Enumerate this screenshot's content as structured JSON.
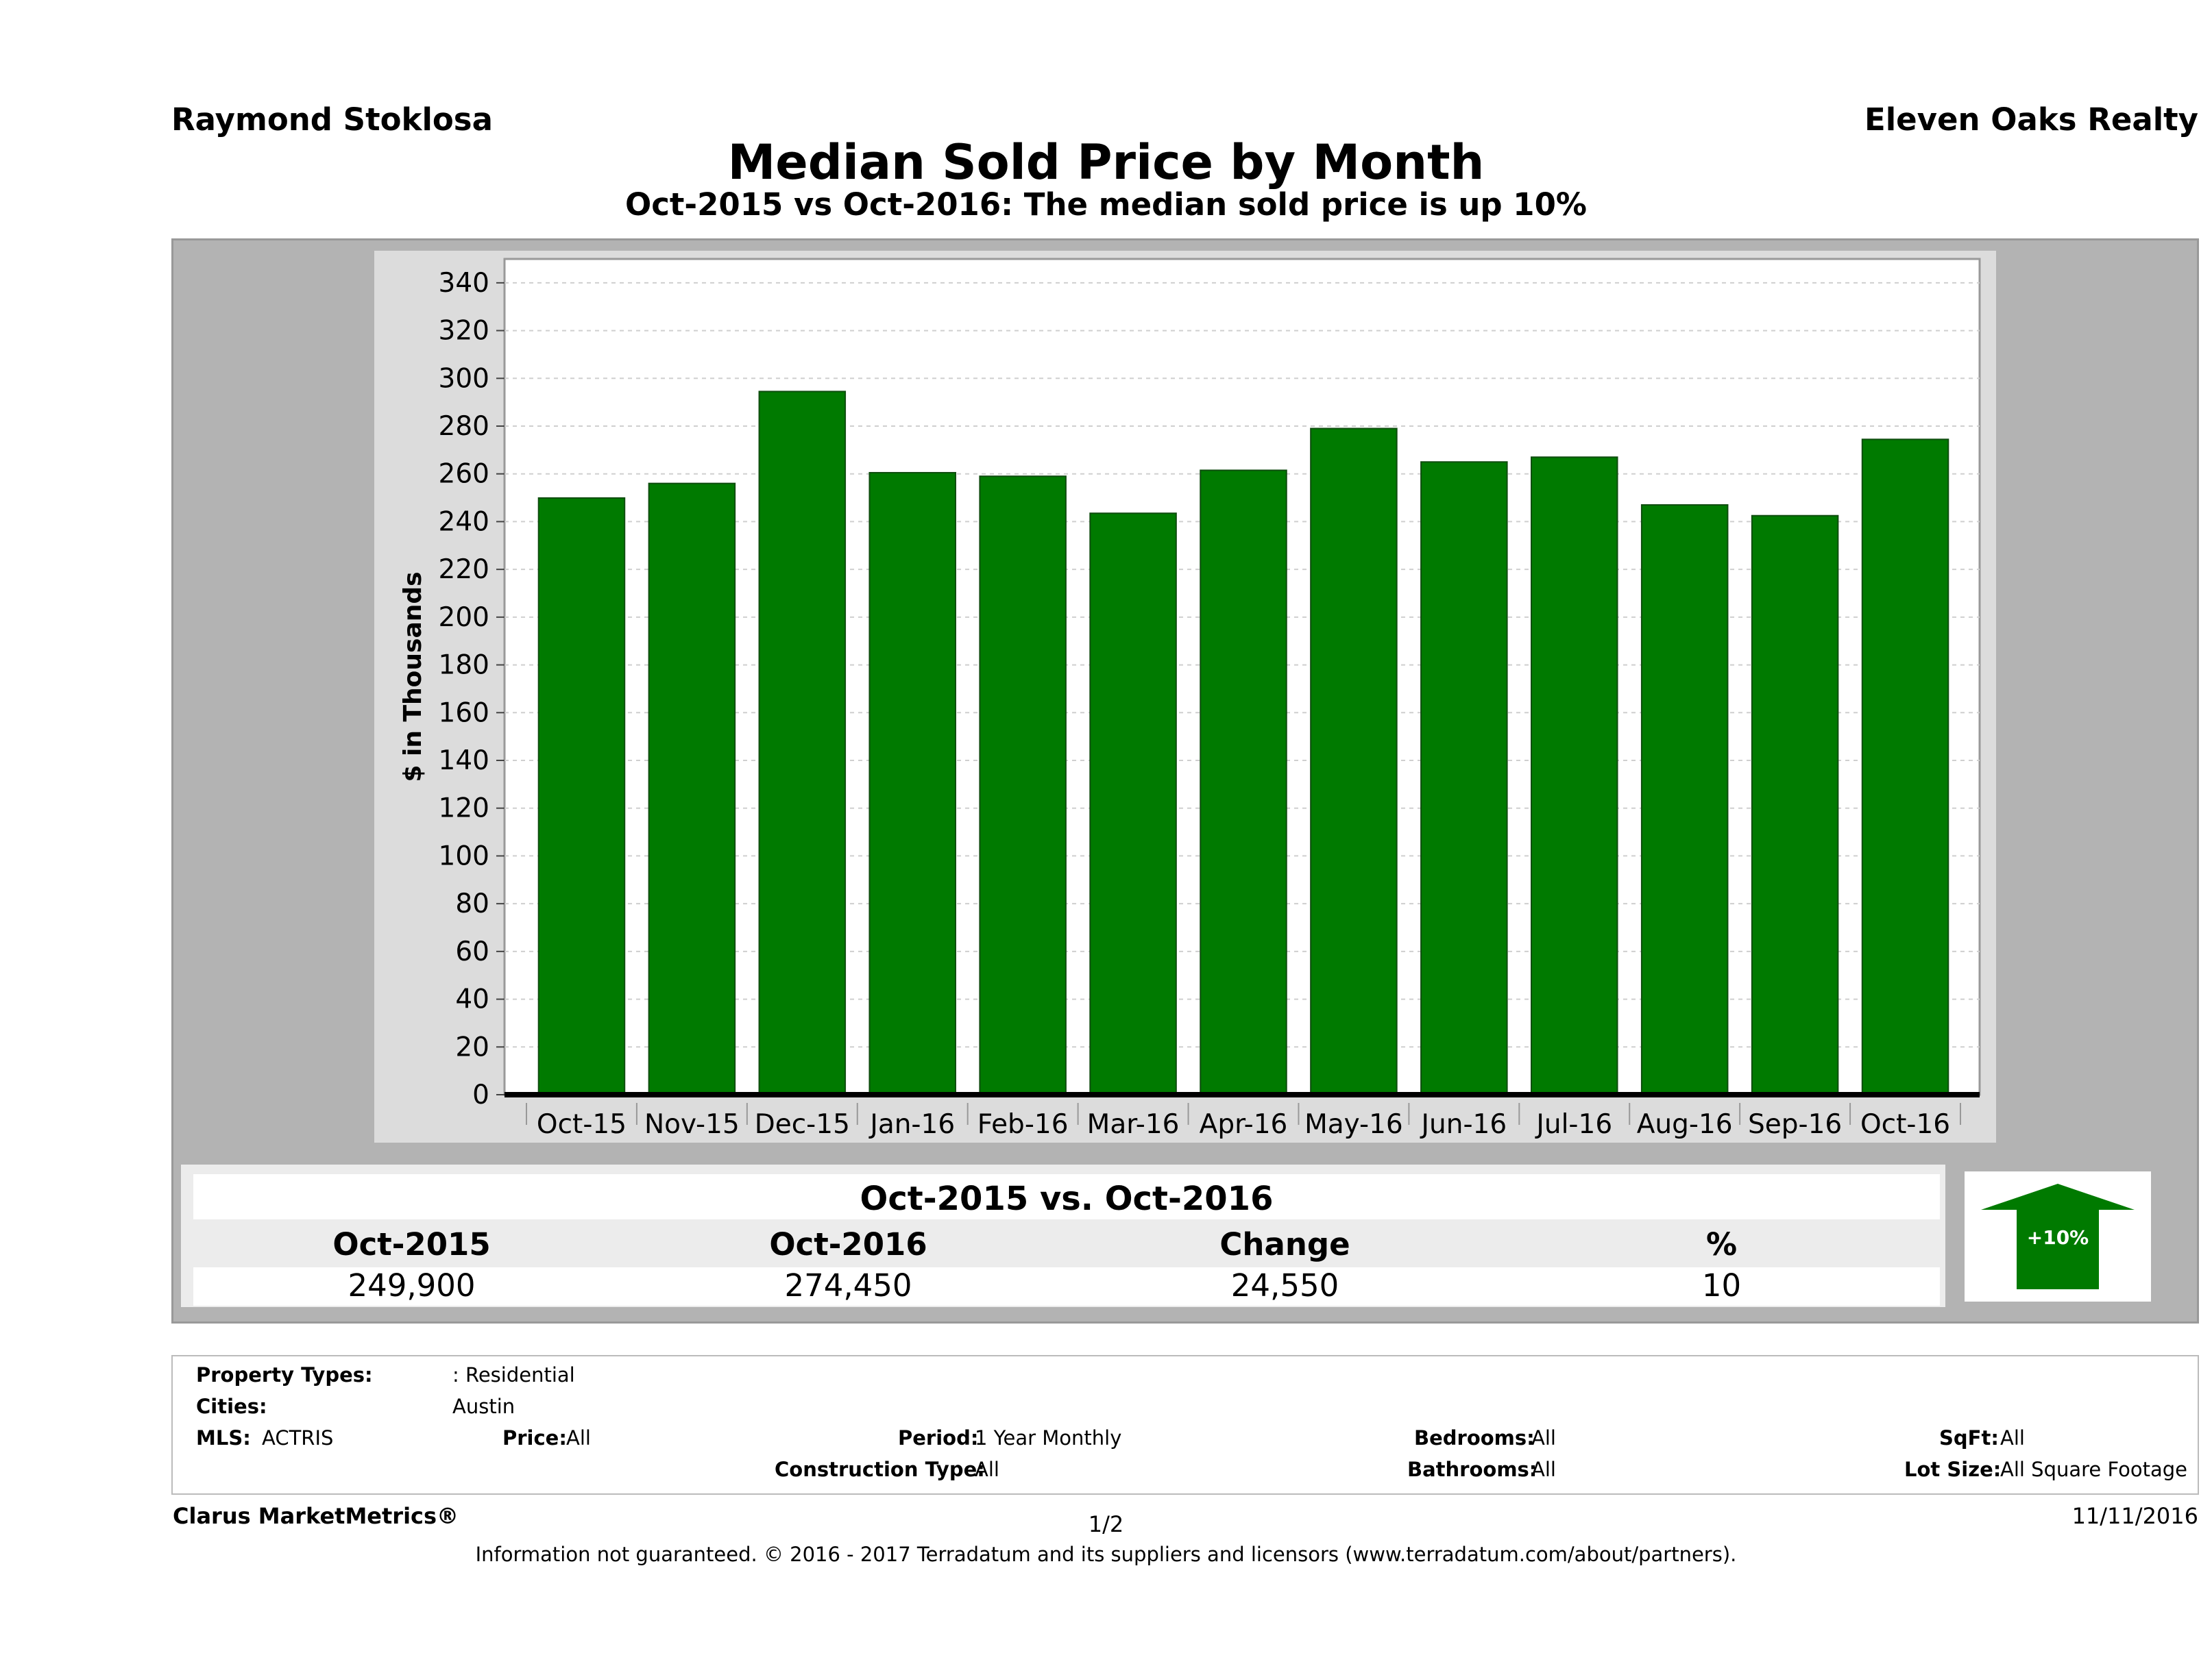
{
  "header": {
    "agent": "Raymond Stoklosa",
    "brokerage": "Eleven Oaks Realty"
  },
  "chart_data": {
    "type": "bar",
    "title": "Median Sold Price by Month",
    "subtitle": "Oct-2015 vs Oct-2016: The median sold price is up 10%",
    "xlabel": "",
    "ylabel": "$ in Thousands",
    "categories": [
      "Oct-15",
      "Nov-15",
      "Dec-15",
      "Jan-16",
      "Feb-16",
      "Mar-16",
      "Apr-16",
      "May-16",
      "Jun-16",
      "Jul-16",
      "Aug-16",
      "Sep-16",
      "Oct-16"
    ],
    "values": [
      249.9,
      256,
      294.5,
      260.5,
      259,
      243.5,
      261.5,
      279,
      265,
      267,
      247,
      242.5,
      274.45
    ],
    "ylim": [
      0,
      350
    ],
    "yticks": [
      0,
      20,
      40,
      60,
      80,
      100,
      120,
      140,
      160,
      180,
      200,
      220,
      240,
      260,
      280,
      300,
      320,
      340
    ],
    "grid": true,
    "bar_color": "#007a00"
  },
  "summary": {
    "title": "Oct-2015 vs. Oct-2016",
    "headers": [
      "Oct-2015",
      "Oct-2016",
      "Change",
      "%"
    ],
    "values": [
      "249,900",
      "274,450",
      "24,550",
      "10"
    ],
    "badge": "+10%",
    "badge_color": "#007a00"
  },
  "filters": {
    "property_types_label": "Property Types:",
    "property_types_value": ": Residential",
    "cities_label": "Cities:",
    "cities_value": "Austin",
    "mls_label": "MLS:",
    "mls_value": "ACTRIS",
    "price_label": "Price:",
    "price_value": "All",
    "period_label": "Period:",
    "period_value": "1 Year Monthly",
    "construction_label": "Construction Type:",
    "construction_value": "All",
    "bedrooms_label": "Bedrooms:",
    "bedrooms_value": "All",
    "bathrooms_label": "Bathrooms:",
    "bathrooms_value": "All",
    "sqft_label": "SqFt:",
    "sqft_value": "All",
    "lot_label": "Lot Size:",
    "lot_value": "All Square Footage"
  },
  "footer": {
    "product": "Clarus MarketMetrics®",
    "page": "1/2",
    "date": "11/11/2016",
    "disclaimer": "Information not guaranteed. © 2016 - 2017 Terradatum and its suppliers and licensors (www.terradatum.com/about/partners)."
  }
}
